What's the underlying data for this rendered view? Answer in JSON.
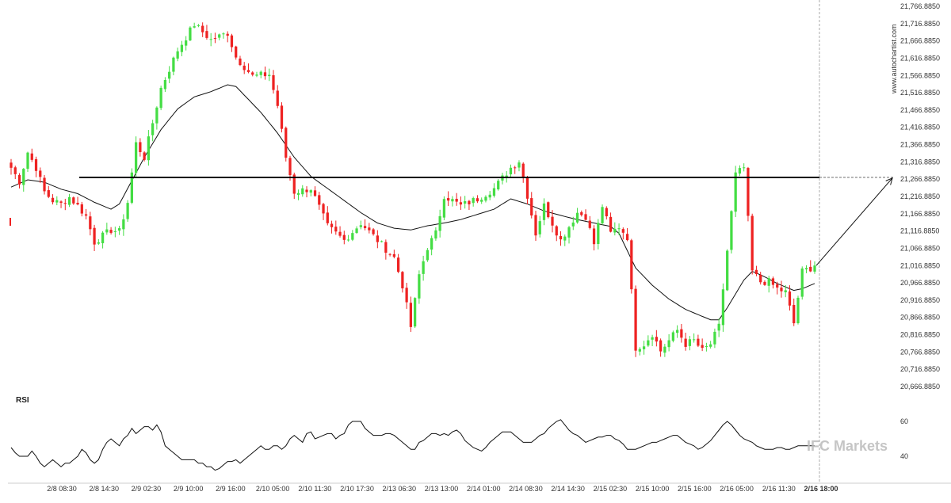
{
  "chart_data": {
    "type": "candlestick",
    "price_axis": {
      "ylim": [
        20666.885,
        21766.885
      ],
      "tick_labels": [
        "21,766.8850",
        "21,716.8850",
        "21,666.8850",
        "21,616.8850",
        "21,566.8850",
        "21,516.8850",
        "21,466.8850",
        "21,416.8850",
        "21,366.8850",
        "21,316.8850",
        "21,266.8850",
        "21,216.8850",
        "21,166.8850",
        "21,116.8850",
        "21,066.8850",
        "21,016.8850",
        "20,966.8850",
        "20,916.8850",
        "20,866.8850",
        "20,816.8850",
        "20,766.8850",
        "20,716.8850",
        "20,666.8850"
      ]
    },
    "x_tick_labels": [
      "2/8 08:30",
      "2/8 14:30",
      "2/9 02:30",
      "2/9 10:00",
      "2/9 16:00",
      "2/10 05:00",
      "2/10 11:30",
      "2/10 17:30",
      "2/13 06:30",
      "2/13 13:00",
      "2/14 01:00",
      "2/14 08:30",
      "2/14 14:30",
      "2/15 02:30",
      "2/15 10:00",
      "2/15 16:00",
      "2/16 05:00",
      "2/16 11:30",
      "2/16 18:00"
    ],
    "current_x_label": "2/16 18:00",
    "resistance_level": 21272,
    "projection_target": 21270,
    "watermark": "www.autochartist.com",
    "colors": {
      "up": "#44dd44",
      "down": "#ee2222",
      "ma": "#111111",
      "level": "#000000",
      "rsi": "#111111",
      "grid": "#cccccc"
    },
    "price_waypoints": [
      [
        0,
        21300
      ],
      [
        2,
        21260
      ],
      [
        4,
        21345
      ],
      [
        6,
        21300
      ],
      [
        8,
        21230
      ],
      [
        10,
        21205
      ],
      [
        12,
        21195
      ],
      [
        14,
        21215
      ],
      [
        16,
        21190
      ],
      [
        18,
        21160
      ],
      [
        20,
        21085
      ],
      [
        24,
        21120
      ],
      [
        26,
        21115
      ],
      [
        28,
        21200
      ],
      [
        30,
        21370
      ],
      [
        32,
        21330
      ],
      [
        36,
        21530
      ],
      [
        40,
        21640
      ],
      [
        44,
        21715
      ],
      [
        48,
        21670
      ],
      [
        52,
        21690
      ],
      [
        54,
        21620
      ],
      [
        58,
        21565
      ],
      [
        62,
        21570
      ],
      [
        64,
        21480
      ],
      [
        66,
        21330
      ],
      [
        68,
        21230
      ],
      [
        72,
        21240
      ],
      [
        76,
        21130
      ],
      [
        80,
        21090
      ],
      [
        84,
        21140
      ],
      [
        88,
        21090
      ],
      [
        92,
        21040
      ],
      [
        94,
        20960
      ],
      [
        96,
        20840
      ],
      [
        98,
        20990
      ],
      [
        100,
        21070
      ],
      [
        102,
        21110
      ],
      [
        104,
        21220
      ],
      [
        108,
        21190
      ],
      [
        112,
        21210
      ],
      [
        116,
        21240
      ],
      [
        118,
        21270
      ],
      [
        120,
        21300
      ],
      [
        122,
        21320
      ],
      [
        124,
        21220
      ],
      [
        126,
        21110
      ],
      [
        128,
        21190
      ],
      [
        130,
        21140
      ],
      [
        132,
        21090
      ],
      [
        134,
        21130
      ],
      [
        136,
        21170
      ],
      [
        138,
        21160
      ],
      [
        140,
        21080
      ],
      [
        142,
        21190
      ],
      [
        144,
        21110
      ],
      [
        146,
        21130
      ],
      [
        148,
        21100
      ],
      [
        150,
        20780
      ],
      [
        152,
        20790
      ],
      [
        154,
        20820
      ],
      [
        156,
        20770
      ],
      [
        158,
        20800
      ],
      [
        160,
        20830
      ],
      [
        162,
        20790
      ],
      [
        164,
        20800
      ],
      [
        166,
        20770
      ],
      [
        168,
        20790
      ],
      [
        170,
        20840
      ],
      [
        172,
        21060
      ],
      [
        174,
        21280
      ],
      [
        176,
        21300
      ],
      [
        178,
        21000
      ],
      [
        180,
        20970
      ],
      [
        182,
        20970
      ],
      [
        184,
        20950
      ],
      [
        186,
        20940
      ],
      [
        188,
        20850
      ],
      [
        190,
        21000
      ],
      [
        192,
        21010
      ],
      [
        193,
        21020
      ]
    ],
    "ma_values": [
      [
        0,
        21244
      ],
      [
        4,
        21265
      ],
      [
        8,
        21258
      ],
      [
        12,
        21238
      ],
      [
        16,
        21225
      ],
      [
        20,
        21200
      ],
      [
        24,
        21180
      ],
      [
        26,
        21195
      ],
      [
        28,
        21240
      ],
      [
        32,
        21330
      ],
      [
        36,
        21410
      ],
      [
        40,
        21470
      ],
      [
        44,
        21505
      ],
      [
        48,
        21520
      ],
      [
        52,
        21540
      ],
      [
        54,
        21535
      ],
      [
        56,
        21510
      ],
      [
        60,
        21460
      ],
      [
        64,
        21400
      ],
      [
        68,
        21330
      ],
      [
        72,
        21275
      ],
      [
        76,
        21240
      ],
      [
        80,
        21205
      ],
      [
        84,
        21170
      ],
      [
        88,
        21140
      ],
      [
        92,
        21125
      ],
      [
        96,
        21120
      ],
      [
        100,
        21132
      ],
      [
        104,
        21140
      ],
      [
        108,
        21150
      ],
      [
        112,
        21165
      ],
      [
        116,
        21180
      ],
      [
        118,
        21195
      ],
      [
        120,
        21210
      ],
      [
        124,
        21195
      ],
      [
        128,
        21175
      ],
      [
        132,
        21162
      ],
      [
        136,
        21150
      ],
      [
        140,
        21140
      ],
      [
        144,
        21130
      ],
      [
        146,
        21110
      ],
      [
        148,
        21060
      ],
      [
        150,
        21010
      ],
      [
        154,
        20960
      ],
      [
        158,
        20920
      ],
      [
        162,
        20890
      ],
      [
        166,
        20870
      ],
      [
        168,
        20860
      ],
      [
        170,
        20860
      ],
      [
        172,
        20895
      ],
      [
        174,
        20935
      ],
      [
        176,
        20975
      ],
      [
        178,
        21000
      ],
      [
        180,
        20990
      ],
      [
        182,
        20978
      ],
      [
        184,
        20965
      ],
      [
        186,
        20955
      ],
      [
        188,
        20945
      ],
      [
        190,
        20950
      ],
      [
        192,
        20960
      ],
      [
        193,
        20965
      ]
    ],
    "rsi": {
      "label": "RSI",
      "ylim": [
        30,
        70
      ],
      "tick_labels": [
        "60",
        "40"
      ],
      "tick_values": [
        60,
        40
      ],
      "values": [
        45,
        42,
        40,
        40,
        40,
        43,
        40,
        36,
        34,
        36,
        38,
        36,
        34,
        36,
        36,
        38,
        40,
        44,
        42,
        38,
        36,
        38,
        44,
        48,
        50,
        48,
        46,
        50,
        52,
        56,
        53,
        55,
        57,
        57,
        55,
        58,
        54,
        46,
        44,
        42,
        40,
        38,
        38,
        38,
        38,
        36,
        36,
        34,
        34,
        32,
        33,
        35,
        37,
        37,
        38,
        36,
        38,
        40,
        42,
        44,
        46,
        44,
        44,
        46,
        46,
        44,
        46,
        50,
        52,
        50,
        48,
        53,
        54,
        50,
        51,
        52,
        53,
        53,
        50,
        52,
        53,
        58,
        60,
        60,
        60,
        56,
        54,
        52,
        52,
        52,
        53,
        53,
        52,
        50,
        48,
        46,
        44,
        44,
        48,
        49,
        51,
        53,
        53,
        52,
        53,
        52,
        54,
        55,
        53,
        49,
        47,
        45,
        44,
        43,
        45,
        48,
        50,
        52,
        54,
        54,
        54,
        52,
        50,
        48,
        48,
        48,
        50,
        52,
        53,
        56,
        58,
        60,
        61,
        58,
        55,
        53,
        52,
        50,
        48,
        49,
        50,
        51,
        51,
        52,
        52,
        50,
        49,
        47,
        44,
        44,
        44,
        45,
        46,
        47,
        48,
        48,
        49,
        50,
        51,
        52,
        52,
        50,
        48,
        47,
        46,
        44,
        45,
        47,
        49,
        52,
        55,
        58,
        60,
        58,
        55,
        52,
        50,
        49,
        48,
        46,
        45,
        44,
        44,
        44,
        45,
        45,
        44,
        44,
        45,
        46,
        46,
        46,
        46,
        46
      ]
    },
    "brand_watermark": "IFC Markets"
  }
}
